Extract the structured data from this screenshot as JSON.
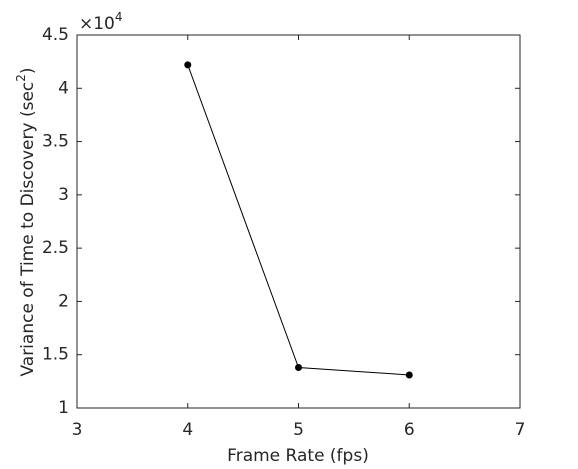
{
  "chart_data": {
    "type": "line",
    "xlabel": "Frame Rate (fps)",
    "ylabel": [
      "Variance of Time to Discovery (sec",
      "2",
      ")"
    ],
    "y_multiplier": {
      "base": "×10",
      "exponent": "4"
    },
    "x": [
      4,
      5,
      6
    ],
    "series": [
      {
        "color": "#000000",
        "values": [
          4.22,
          1.38,
          1.31
        ]
      }
    ],
    "xlim": [
      3,
      7
    ],
    "xticks": [
      3,
      4,
      5,
      6,
      7
    ],
    "ylim": [
      1,
      4.5
    ],
    "yticks": [
      1,
      1.5,
      2,
      2.5,
      3,
      3.5,
      4,
      4.5
    ],
    "grid": false
  }
}
